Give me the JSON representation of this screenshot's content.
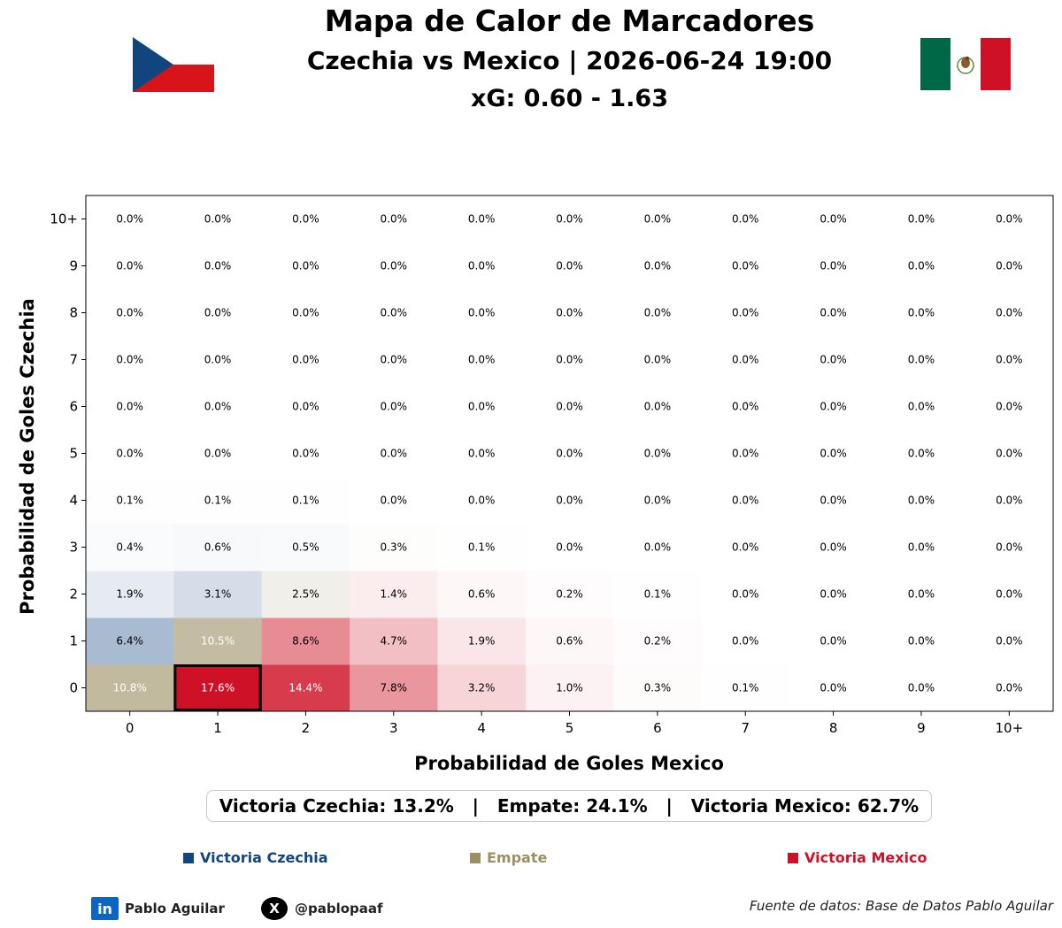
{
  "header": {
    "title": "Mapa de Calor de Marcadores",
    "subtitle": "Czechia vs Mexico | 2026-06-24 19:00",
    "xg": "xG: 0.60 - 1.63"
  },
  "flags": {
    "home_icon": "czech-flag-icon",
    "away_icon": "mexico-flag-icon"
  },
  "chart_data": {
    "type": "heatmap",
    "xlabel": "Probabilidad de Goles Mexico",
    "ylabel": "Probabilidad de Goles Czechia",
    "x_ticks": [
      "0",
      "1",
      "2",
      "3",
      "4",
      "5",
      "6",
      "7",
      "8",
      "9",
      "10+"
    ],
    "y_ticks": [
      "0",
      "1",
      "2",
      "3",
      "4",
      "5",
      "6",
      "7",
      "8",
      "9",
      "10+"
    ],
    "row_axis": "Czechia goals (row index 0 = bottom)",
    "values": [
      [
        10.8,
        17.6,
        14.4,
        7.8,
        3.2,
        1.0,
        0.3,
        0.1,
        0.0,
        0.0,
        0.0
      ],
      [
        6.4,
        10.5,
        8.6,
        4.7,
        1.9,
        0.6,
        0.2,
        0.0,
        0.0,
        0.0,
        0.0
      ],
      [
        1.9,
        3.1,
        2.5,
        1.4,
        0.6,
        0.2,
        0.1,
        0.0,
        0.0,
        0.0,
        0.0
      ],
      [
        0.4,
        0.6,
        0.5,
        0.3,
        0.1,
        0.0,
        0.0,
        0.0,
        0.0,
        0.0,
        0.0
      ],
      [
        0.1,
        0.1,
        0.1,
        0.0,
        0.0,
        0.0,
        0.0,
        0.0,
        0.0,
        0.0,
        0.0
      ],
      [
        0.0,
        0.0,
        0.0,
        0.0,
        0.0,
        0.0,
        0.0,
        0.0,
        0.0,
        0.0,
        0.0
      ],
      [
        0.0,
        0.0,
        0.0,
        0.0,
        0.0,
        0.0,
        0.0,
        0.0,
        0.0,
        0.0,
        0.0
      ],
      [
        0.0,
        0.0,
        0.0,
        0.0,
        0.0,
        0.0,
        0.0,
        0.0,
        0.0,
        0.0,
        0.0
      ],
      [
        0.0,
        0.0,
        0.0,
        0.0,
        0.0,
        0.0,
        0.0,
        0.0,
        0.0,
        0.0,
        0.0
      ],
      [
        0.0,
        0.0,
        0.0,
        0.0,
        0.0,
        0.0,
        0.0,
        0.0,
        0.0,
        0.0,
        0.0
      ],
      [
        0.0,
        0.0,
        0.0,
        0.0,
        0.0,
        0.0,
        0.0,
        0.0,
        0.0,
        0.0,
        0.0
      ]
    ],
    "highlight": {
      "czechia_goals": 0,
      "mexico_goals": 1
    },
    "grid": false,
    "colors": {
      "czechia": "#11457e",
      "draw": "#9b8f63",
      "mexico": "#ce1126"
    }
  },
  "summary": {
    "text": "Victoria Czechia: 13.2%   |   Empate: 24.1%   |   Victoria Mexico: 62.7%"
  },
  "legend": {
    "items": [
      {
        "label": "Victoria Czechia",
        "color": "#11457e"
      },
      {
        "label": "Empate",
        "color": "#9b8f63"
      },
      {
        "label": "Victoria Mexico",
        "color": "#ce1126"
      }
    ]
  },
  "footer": {
    "linkedin_icon": "in",
    "linkedin_name": "Pablo Aguilar",
    "x_icon": "X",
    "x_handle": "@pablopaaf",
    "source": "Fuente de datos: Base de Datos Pablo Aguilar"
  }
}
